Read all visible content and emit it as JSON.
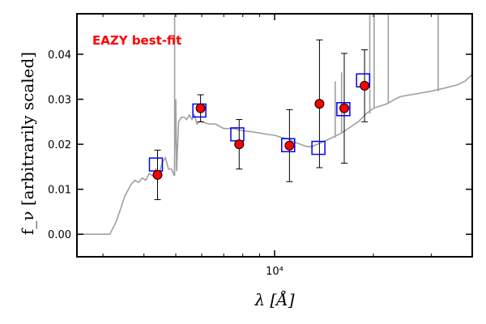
{
  "chart_data": {
    "type": "scatter",
    "title": "",
    "xlabel": "λ [Å]",
    "ylabel": "f_ν [arbitrarily scaled]",
    "x_scale": "log",
    "xlim": [
      2500,
      40000
    ],
    "ylim": [
      -0.005,
      0.049
    ],
    "x_ticks": [
      {
        "value": 10000,
        "label": "10⁴"
      }
    ],
    "x_minor_ticks": [
      3000,
      4000,
      5000,
      6000,
      7000,
      8000,
      9000,
      20000,
      30000
    ],
    "y_ticks": [
      0.0,
      0.01,
      0.02,
      0.03,
      0.04
    ],
    "y_tick_labels": [
      "0.00",
      "0.01",
      "0.02",
      "0.03",
      "0.04"
    ],
    "annotation": {
      "text": "EAZY best-fit",
      "color": "#ff0000",
      "position": "top-left"
    },
    "grid": false,
    "series": [
      {
        "kind": "line",
        "color": "#a0a0a0",
        "points": [
          [
            2500,
            0.0
          ],
          [
            3000,
            0.0
          ],
          [
            3150,
            0.0
          ],
          [
            3300,
            0.003
          ],
          [
            3500,
            0.0085
          ],
          [
            3650,
            0.011
          ],
          [
            3750,
            0.012
          ],
          [
            3850,
            0.0115
          ],
          [
            3950,
            0.0125
          ],
          [
            4050,
            0.012
          ],
          [
            4150,
            0.0135
          ],
          [
            4250,
            0.013
          ],
          [
            4350,
            0.0145
          ],
          [
            4450,
            0.0135
          ],
          [
            4550,
            0.016
          ],
          [
            4650,
            0.017
          ],
          [
            4750,
            0.0145
          ],
          [
            4850,
            0.0145
          ],
          [
            4950,
            0.013
          ],
          [
            5000,
            0.03
          ],
          [
            5030,
            0.014
          ],
          [
            5100,
            0.025
          ],
          [
            5200,
            0.026
          ],
          [
            5300,
            0.026
          ],
          [
            5400,
            0.0255
          ],
          [
            5500,
            0.0265
          ],
          [
            5600,
            0.0255
          ],
          [
            5700,
            0.0265
          ],
          [
            5800,
            0.0245
          ],
          [
            5900,
            0.025
          ],
          [
            6000,
            0.025
          ],
          [
            6300,
            0.0245
          ],
          [
            6600,
            0.0245
          ],
          [
            7000,
            0.0235
          ],
          [
            7500,
            0.0235
          ],
          [
            8000,
            0.023
          ],
          [
            8500,
            0.0228
          ],
          [
            9000,
            0.0225
          ],
          [
            9500,
            0.0222
          ],
          [
            10000,
            0.022
          ],
          [
            10500,
            0.0215
          ],
          [
            11000,
            0.0212
          ],
          [
            11500,
            0.0205
          ],
          [
            12000,
            0.02
          ],
          [
            12500,
            0.0195
          ],
          [
            13000,
            0.0195
          ],
          [
            13500,
            0.02
          ],
          [
            14000,
            0.0205
          ],
          [
            15000,
            0.0215
          ],
          [
            16000,
            0.0225
          ],
          [
            17000,
            0.0238
          ],
          [
            18000,
            0.025
          ],
          [
            19000,
            0.0268
          ],
          [
            20000,
            0.028
          ],
          [
            21000,
            0.0285
          ],
          [
            22000,
            0.029
          ],
          [
            23000,
            0.0298
          ],
          [
            24000,
            0.0305
          ],
          [
            25000,
            0.0308
          ],
          [
            27000,
            0.0312
          ],
          [
            30000,
            0.0318
          ],
          [
            33000,
            0.0325
          ],
          [
            36000,
            0.0332
          ],
          [
            38000,
            0.034
          ],
          [
            40000,
            0.0355
          ]
        ],
        "spikes": [
          [
            4960,
            0.049
          ],
          [
            15300,
            0.034
          ],
          [
            16000,
            0.036
          ],
          [
            19500,
            0.049
          ],
          [
            20100,
            0.049
          ],
          [
            22200,
            0.049
          ],
          [
            31500,
            0.049
          ]
        ]
      },
      {
        "kind": "model-photometry",
        "marker": "square",
        "color": "#0000ff",
        "points": [
          [
            4350,
            0.0155
          ],
          [
            5900,
            0.0275
          ],
          [
            7700,
            0.0222
          ],
          [
            11000,
            0.0198
          ],
          [
            13600,
            0.0192
          ],
          [
            16200,
            0.0278
          ],
          [
            18600,
            0.0342
          ]
        ]
      },
      {
        "kind": "observed-photometry",
        "marker": "circle",
        "color": "#ff0000",
        "points": [
          {
            "x": 4400,
            "y": 0.0132,
            "err": 0.0055
          },
          {
            "x": 5950,
            "y": 0.028,
            "err": 0.003
          },
          {
            "x": 7800,
            "y": 0.02,
            "err": 0.0055
          },
          {
            "x": 11100,
            "y": 0.0197,
            "err": 0.008
          },
          {
            "x": 13700,
            "y": 0.029,
            "err": 0.0142
          },
          {
            "x": 16300,
            "y": 0.028,
            "err": 0.0122
          },
          {
            "x": 18800,
            "y": 0.033,
            "err": 0.008
          }
        ]
      }
    ]
  }
}
